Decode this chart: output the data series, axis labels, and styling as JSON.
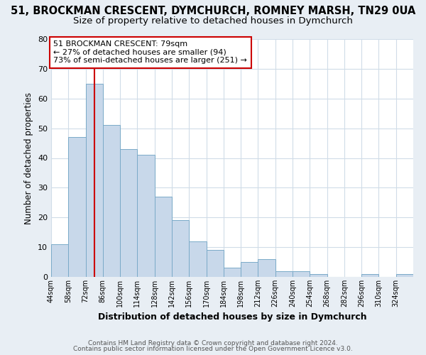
{
  "title": "51, BROCKMAN CRESCENT, DYMCHURCH, ROMNEY MARSH, TN29 0UA",
  "subtitle": "Size of property relative to detached houses in Dymchurch",
  "xlabel": "Distribution of detached houses by size in Dymchurch",
  "ylabel": "Number of detached properties",
  "bin_labels": [
    "44sqm",
    "58sqm",
    "72sqm",
    "86sqm",
    "100sqm",
    "114sqm",
    "128sqm",
    "142sqm",
    "156sqm",
    "170sqm",
    "184sqm",
    "198sqm",
    "212sqm",
    "226sqm",
    "240sqm",
    "254sqm",
    "268sqm",
    "282sqm",
    "296sqm",
    "310sqm",
    "324sqm"
  ],
  "bin_edges": [
    44,
    58,
    72,
    86,
    100,
    114,
    128,
    142,
    156,
    170,
    184,
    198,
    212,
    226,
    240,
    254,
    268,
    282,
    296,
    310,
    324,
    338
  ],
  "counts": [
    11,
    47,
    65,
    51,
    43,
    41,
    27,
    19,
    12,
    9,
    3,
    5,
    6,
    2,
    2,
    1,
    0,
    0,
    1,
    0,
    1
  ],
  "bar_color": "#c8d8ea",
  "bar_edge_color": "#7aaac8",
  "vline_x": 79,
  "vline_color": "#cc0000",
  "annotation_text": "51 BROCKMAN CRESCENT: 79sqm\n← 27% of detached houses are smaller (94)\n73% of semi-detached houses are larger (251) →",
  "annotation_box_color": "#ffffff",
  "annotation_box_edge": "#cc0000",
  "ylim": [
    0,
    80
  ],
  "yticks": [
    0,
    10,
    20,
    30,
    40,
    50,
    60,
    70,
    80
  ],
  "footer1": "Contains HM Land Registry data © Crown copyright and database right 2024.",
  "footer2": "Contains public sector information licensed under the Open Government Licence v3.0.",
  "fig_background_color": "#e8eef4",
  "plot_background_color": "#ffffff",
  "grid_color": "#d0dce8",
  "title_fontsize": 10.5,
  "subtitle_fontsize": 9.5
}
